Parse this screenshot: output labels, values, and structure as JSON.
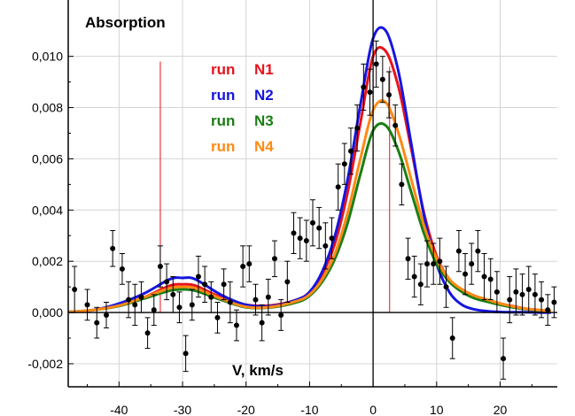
{
  "chart_data": {
    "type": "line",
    "ylabel": "Absorption",
    "xlabel": "V, km/s",
    "xlim": [
      -48,
      29
    ],
    "ylim": [
      -0.0029,
      0.0122
    ],
    "x_ticks": [
      -40,
      -30,
      -20,
      -10,
      0,
      10,
      20
    ],
    "x_tick_labels": [
      "-40",
      "-30",
      "-20",
      "-10",
      "0",
      "10",
      "20"
    ],
    "y_ticks": [
      -0.002,
      0,
      0.002,
      0.004,
      0.006,
      0.008,
      0.01
    ],
    "y_tick_labels": [
      "-0,002",
      "0,000",
      "0,002",
      "0,004",
      "0,006",
      "0,008",
      "0,010"
    ],
    "grid": true,
    "legend_position": "top-center",
    "series": [
      {
        "name": "run N1",
        "label_word": "run",
        "label_id": "N1",
        "color": "#e8121c",
        "x": [
          -48,
          -44,
          -40,
          -36,
          -32,
          -30,
          -28,
          -24,
          -20,
          -16,
          -12,
          -10,
          -8,
          -6,
          -4,
          -2,
          0,
          2,
          4,
          6,
          8,
          10,
          12,
          14,
          16,
          18,
          20,
          22,
          24,
          26,
          28
        ],
        "y": [
          2e-05,
          0.0001,
          0.00028,
          0.0006,
          0.00105,
          0.0011,
          0.00105,
          0.0006,
          0.0003,
          0.00028,
          0.0005,
          0.0008,
          0.0015,
          0.0027,
          0.0047,
          0.0074,
          0.01,
          0.0102,
          0.0088,
          0.0064,
          0.0039,
          0.0022,
          0.0013,
          0.0009,
          0.00065,
          0.0005,
          0.00035,
          0.00025,
          0.00015,
          0.0001,
          5e-05
        ]
      },
      {
        "name": "run N2",
        "label_word": "run",
        "label_id": "N2",
        "color": "#1515e0",
        "x": [
          -48,
          -44,
          -40,
          -36,
          -32,
          -30,
          -28,
          -24,
          -20,
          -16,
          -12,
          -10,
          -8,
          -6,
          -4,
          -2,
          0,
          2,
          4,
          6,
          8,
          10,
          12,
          14,
          16,
          18,
          20,
          22,
          24,
          26,
          28
        ],
        "y": [
          2e-05,
          0.0001,
          0.00035,
          0.00075,
          0.0013,
          0.00135,
          0.0013,
          0.0007,
          0.0003,
          0.00025,
          0.0005,
          0.0008,
          0.0016,
          0.003,
          0.0052,
          0.0081,
          0.0107,
          0.011,
          0.0094,
          0.0066,
          0.0038,
          0.0019,
          0.0008,
          0.0003,
          0.00012,
          5e-05,
          2e-05,
          1e-05,
          1e-05,
          0,
          0
        ]
      },
      {
        "name": "run N3",
        "label_word": "run",
        "label_id": "N3",
        "color": "#1a7e14",
        "x": [
          -48,
          -44,
          -40,
          -36,
          -32,
          -30,
          -28,
          -24,
          -20,
          -16,
          -12,
          -10,
          -8,
          -6,
          -4,
          -2,
          0,
          2,
          4,
          6,
          8,
          10,
          12,
          14,
          16,
          18,
          20,
          22,
          24,
          26,
          28
        ],
        "y": [
          2e-05,
          0.0001,
          0.00025,
          0.00055,
          0.00085,
          0.0009,
          0.00085,
          0.0005,
          0.0002,
          0.0002,
          0.0004,
          0.00065,
          0.0012,
          0.0021,
          0.0035,
          0.0054,
          0.0071,
          0.0073,
          0.0063,
          0.0047,
          0.0031,
          0.0019,
          0.0012,
          0.0008,
          0.00055,
          0.00042,
          0.0003,
          0.0002,
          0.00013,
          8e-05,
          4e-05
        ]
      },
      {
        "name": "run N4",
        "label_word": "run",
        "label_id": "N4",
        "color": "#ff8a13",
        "x": [
          -48,
          -44,
          -40,
          -36,
          -32,
          -30,
          -28,
          -24,
          -20,
          -16,
          -12,
          -10,
          -8,
          -6,
          -4,
          -2,
          0,
          2,
          4,
          6,
          8,
          10,
          12,
          14,
          16,
          18,
          20,
          22,
          24,
          26,
          28
        ],
        "y": [
          2e-05,
          0.0001,
          0.00027,
          0.0006,
          0.00095,
          0.001,
          0.00095,
          0.00055,
          0.00022,
          0.00022,
          0.00045,
          0.0007,
          0.0013,
          0.0023,
          0.0039,
          0.006,
          0.0079,
          0.0082,
          0.007,
          0.0052,
          0.0034,
          0.0021,
          0.0013,
          0.0009,
          0.00065,
          0.0005,
          0.00035,
          0.00024,
          0.00015,
          0.0001,
          5e-05
        ]
      }
    ],
    "observations": {
      "name": "",
      "color": "#000000",
      "x": [
        -47,
        -45,
        -43.5,
        -42,
        -41,
        -39.5,
        -38.5,
        -37.5,
        -36.5,
        -35.5,
        -34.5,
        -33.5,
        -32.5,
        -31.5,
        -30.5,
        -29.5,
        -28.5,
        -27.5,
        -26.5,
        -25.5,
        -24.5,
        -23.5,
        -22.5,
        -21.5,
        -20.5,
        -19.5,
        -18.5,
        -17.5,
        -16.5,
        -15.5,
        -14.5,
        -13.5,
        -12.5,
        -11.5,
        -10.5,
        -9.5,
        -8.5,
        -7.5,
        -6.5,
        -5.5,
        -4.5,
        -3.5,
        -2.5,
        -1.5,
        -0.5,
        0.5,
        1.5,
        2.5,
        3.5,
        4.5,
        5.5,
        6.5,
        7.5,
        8.5,
        9.5,
        10.5,
        11.5,
        12.5,
        13.5,
        14.5,
        15.5,
        16.5,
        17.5,
        18.5,
        19.5,
        20.5,
        21.5,
        22.5,
        23.5,
        24.5,
        25.5,
        26.5,
        27.5,
        28.5
      ],
      "y": [
        0.0009,
        0.0003,
        -0.0004,
        -0.0001,
        0.0025,
        0.0017,
        0.0005,
        0.0003,
        0.0006,
        -0.0008,
        0.0001,
        0.0018,
        0.0012,
        0.0007,
        0.0002,
        -0.0016,
        0.0003,
        0.0014,
        0.0011,
        0.0006,
        -0.0002,
        0.0011,
        0.0004,
        -0.0005,
        0.0018,
        0.0019,
        0.0005,
        -0.0004,
        0.0006,
        0.0021,
        -0.0001,
        0.0012,
        0.0031,
        0.0029,
        0.0028,
        0.0035,
        0.0033,
        0.0026,
        0.0029,
        0.0049,
        0.0058,
        0.0063,
        0.0072,
        0.0088,
        0.0086,
        0.0097,
        0.0091,
        0.0085,
        0.0073,
        0.005,
        0.0021,
        0.0014,
        0.0011,
        0.0019,
        0.0019,
        0.002,
        0.001,
        -0.001,
        0.0024,
        0.0015,
        0.0019,
        0.0024,
        0.0014,
        0.0013,
        0.0008,
        -0.0018,
        0.0005,
        0.0008,
        0.0007,
        0.0009,
        0.0007,
        0.0005,
        0.0001,
        0.0004
      ],
      "err": [
        0.0009,
        0.0006,
        0.0006,
        0.0005,
        0.0007,
        0.0006,
        0.0007,
        0.0008,
        0.0006,
        0.0006,
        0.0006,
        0.0008,
        0.0007,
        0.0007,
        0.0006,
        0.0007,
        0.0006,
        0.0008,
        0.0007,
        0.0006,
        0.0006,
        0.0006,
        0.0008,
        0.0006,
        0.0008,
        0.0007,
        0.0006,
        0.0007,
        0.0007,
        0.0007,
        0.0006,
        0.0008,
        0.0008,
        0.0008,
        0.0008,
        0.0009,
        0.0008,
        0.0009,
        0.0008,
        0.0009,
        0.0008,
        0.0009,
        0.0009,
        0.0009,
        0.0009,
        0.0009,
        0.0009,
        0.0009,
        0.0008,
        0.0008,
        0.0008,
        0.0008,
        0.0008,
        0.0009,
        0.0008,
        0.0009,
        0.0008,
        0.0008,
        0.0008,
        0.0008,
        0.0008,
        0.0008,
        0.0009,
        0.0008,
        0.0008,
        0.0008,
        0.0009,
        0.0009,
        0.0008,
        0.0009,
        0.0008,
        0.0007,
        0.0006,
        0.0006
      ]
    },
    "markers": [
      {
        "x": -33.5,
        "y_top": 0.0098,
        "color": "#e8121c"
      },
      {
        "x": 2.6,
        "y_top": 0.0096,
        "color": "#e8121c"
      }
    ]
  }
}
